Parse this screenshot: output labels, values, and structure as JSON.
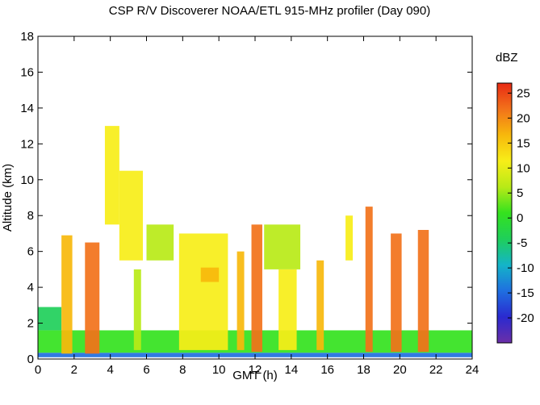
{
  "chart_data": {
    "type": "heatmap",
    "title": "CSP R/V Discoverer NOAA/ETL 915-MHz profiler (Day 090)",
    "xlabel": "GMT (h)",
    "ylabel": "Altitude (km)",
    "xlim": [
      0,
      24
    ],
    "ylim": [
      0,
      18
    ],
    "x_ticks": [
      0,
      2,
      4,
      6,
      8,
      10,
      12,
      14,
      16,
      18,
      20,
      22,
      24
    ],
    "y_ticks": [
      0,
      2,
      4,
      6,
      8,
      10,
      12,
      14,
      16,
      18
    ],
    "colorbar": {
      "label": "dBZ",
      "range": [
        -25,
        27
      ],
      "ticks": [
        -20,
        -15,
        -10,
        -5,
        0,
        5,
        10,
        15,
        20,
        25
      ],
      "colors": [
        "#6b2fa8",
        "#2a2ad0",
        "#1f6fe0",
        "#14b4c8",
        "#1fcf5a",
        "#34e21e",
        "#b8ea17",
        "#f7ee18",
        "#f7b80c",
        "#f2721a",
        "#e82a14"
      ]
    },
    "features": [
      {
        "start": 0.0,
        "end": 24.0,
        "bottom": 0.1,
        "top": 0.35,
        "dbz": -15
      },
      {
        "start": 0.0,
        "end": 24.0,
        "bottom": 0.35,
        "top": 1.6,
        "dbz": 0
      },
      {
        "start": 0.0,
        "end": 1.3,
        "bottom": 1.6,
        "top": 2.9,
        "dbz": -3
      },
      {
        "start": 1.3,
        "end": 1.9,
        "bottom": 0.3,
        "top": 6.9,
        "dbz": 17
      },
      {
        "start": 2.6,
        "end": 3.4,
        "bottom": 0.3,
        "top": 6.5,
        "dbz": 20
      },
      {
        "start": 3.7,
        "end": 4.5,
        "bottom": 7.5,
        "top": 13.0,
        "dbz": 10
      },
      {
        "start": 4.5,
        "end": 5.8,
        "bottom": 5.5,
        "top": 10.5,
        "dbz": 12
      },
      {
        "start": 5.3,
        "end": 5.7,
        "bottom": 0.5,
        "top": 5.0,
        "dbz": 5
      },
      {
        "start": 6.0,
        "end": 7.5,
        "bottom": 5.5,
        "top": 7.5,
        "dbz": 5
      },
      {
        "start": 7.8,
        "end": 10.5,
        "bottom": 0.5,
        "top": 7.0,
        "dbz": 9
      },
      {
        "start": 9.0,
        "end": 10.0,
        "bottom": 4.3,
        "top": 5.1,
        "dbz": 18
      },
      {
        "start": 11.0,
        "end": 11.4,
        "bottom": 0.5,
        "top": 6.0,
        "dbz": 16
      },
      {
        "start": 11.8,
        "end": 12.4,
        "bottom": 0.4,
        "top": 7.5,
        "dbz": 21
      },
      {
        "start": 12.5,
        "end": 14.5,
        "bottom": 5.0,
        "top": 7.5,
        "dbz": 8
      },
      {
        "start": 13.3,
        "end": 14.3,
        "bottom": 0.5,
        "top": 5.0,
        "dbz": 9
      },
      {
        "start": 15.4,
        "end": 15.8,
        "bottom": 0.5,
        "top": 5.5,
        "dbz": 14
      },
      {
        "start": 17.0,
        "end": 17.4,
        "bottom": 5.5,
        "top": 8.0,
        "dbz": 9
      },
      {
        "start": 18.1,
        "end": 18.5,
        "bottom": 0.4,
        "top": 8.5,
        "dbz": 22
      },
      {
        "start": 19.5,
        "end": 20.1,
        "bottom": 0.4,
        "top": 7.0,
        "dbz": 20
      },
      {
        "start": 21.0,
        "end": 21.6,
        "bottom": 0.4,
        "top": 7.2,
        "dbz": 20
      }
    ]
  }
}
